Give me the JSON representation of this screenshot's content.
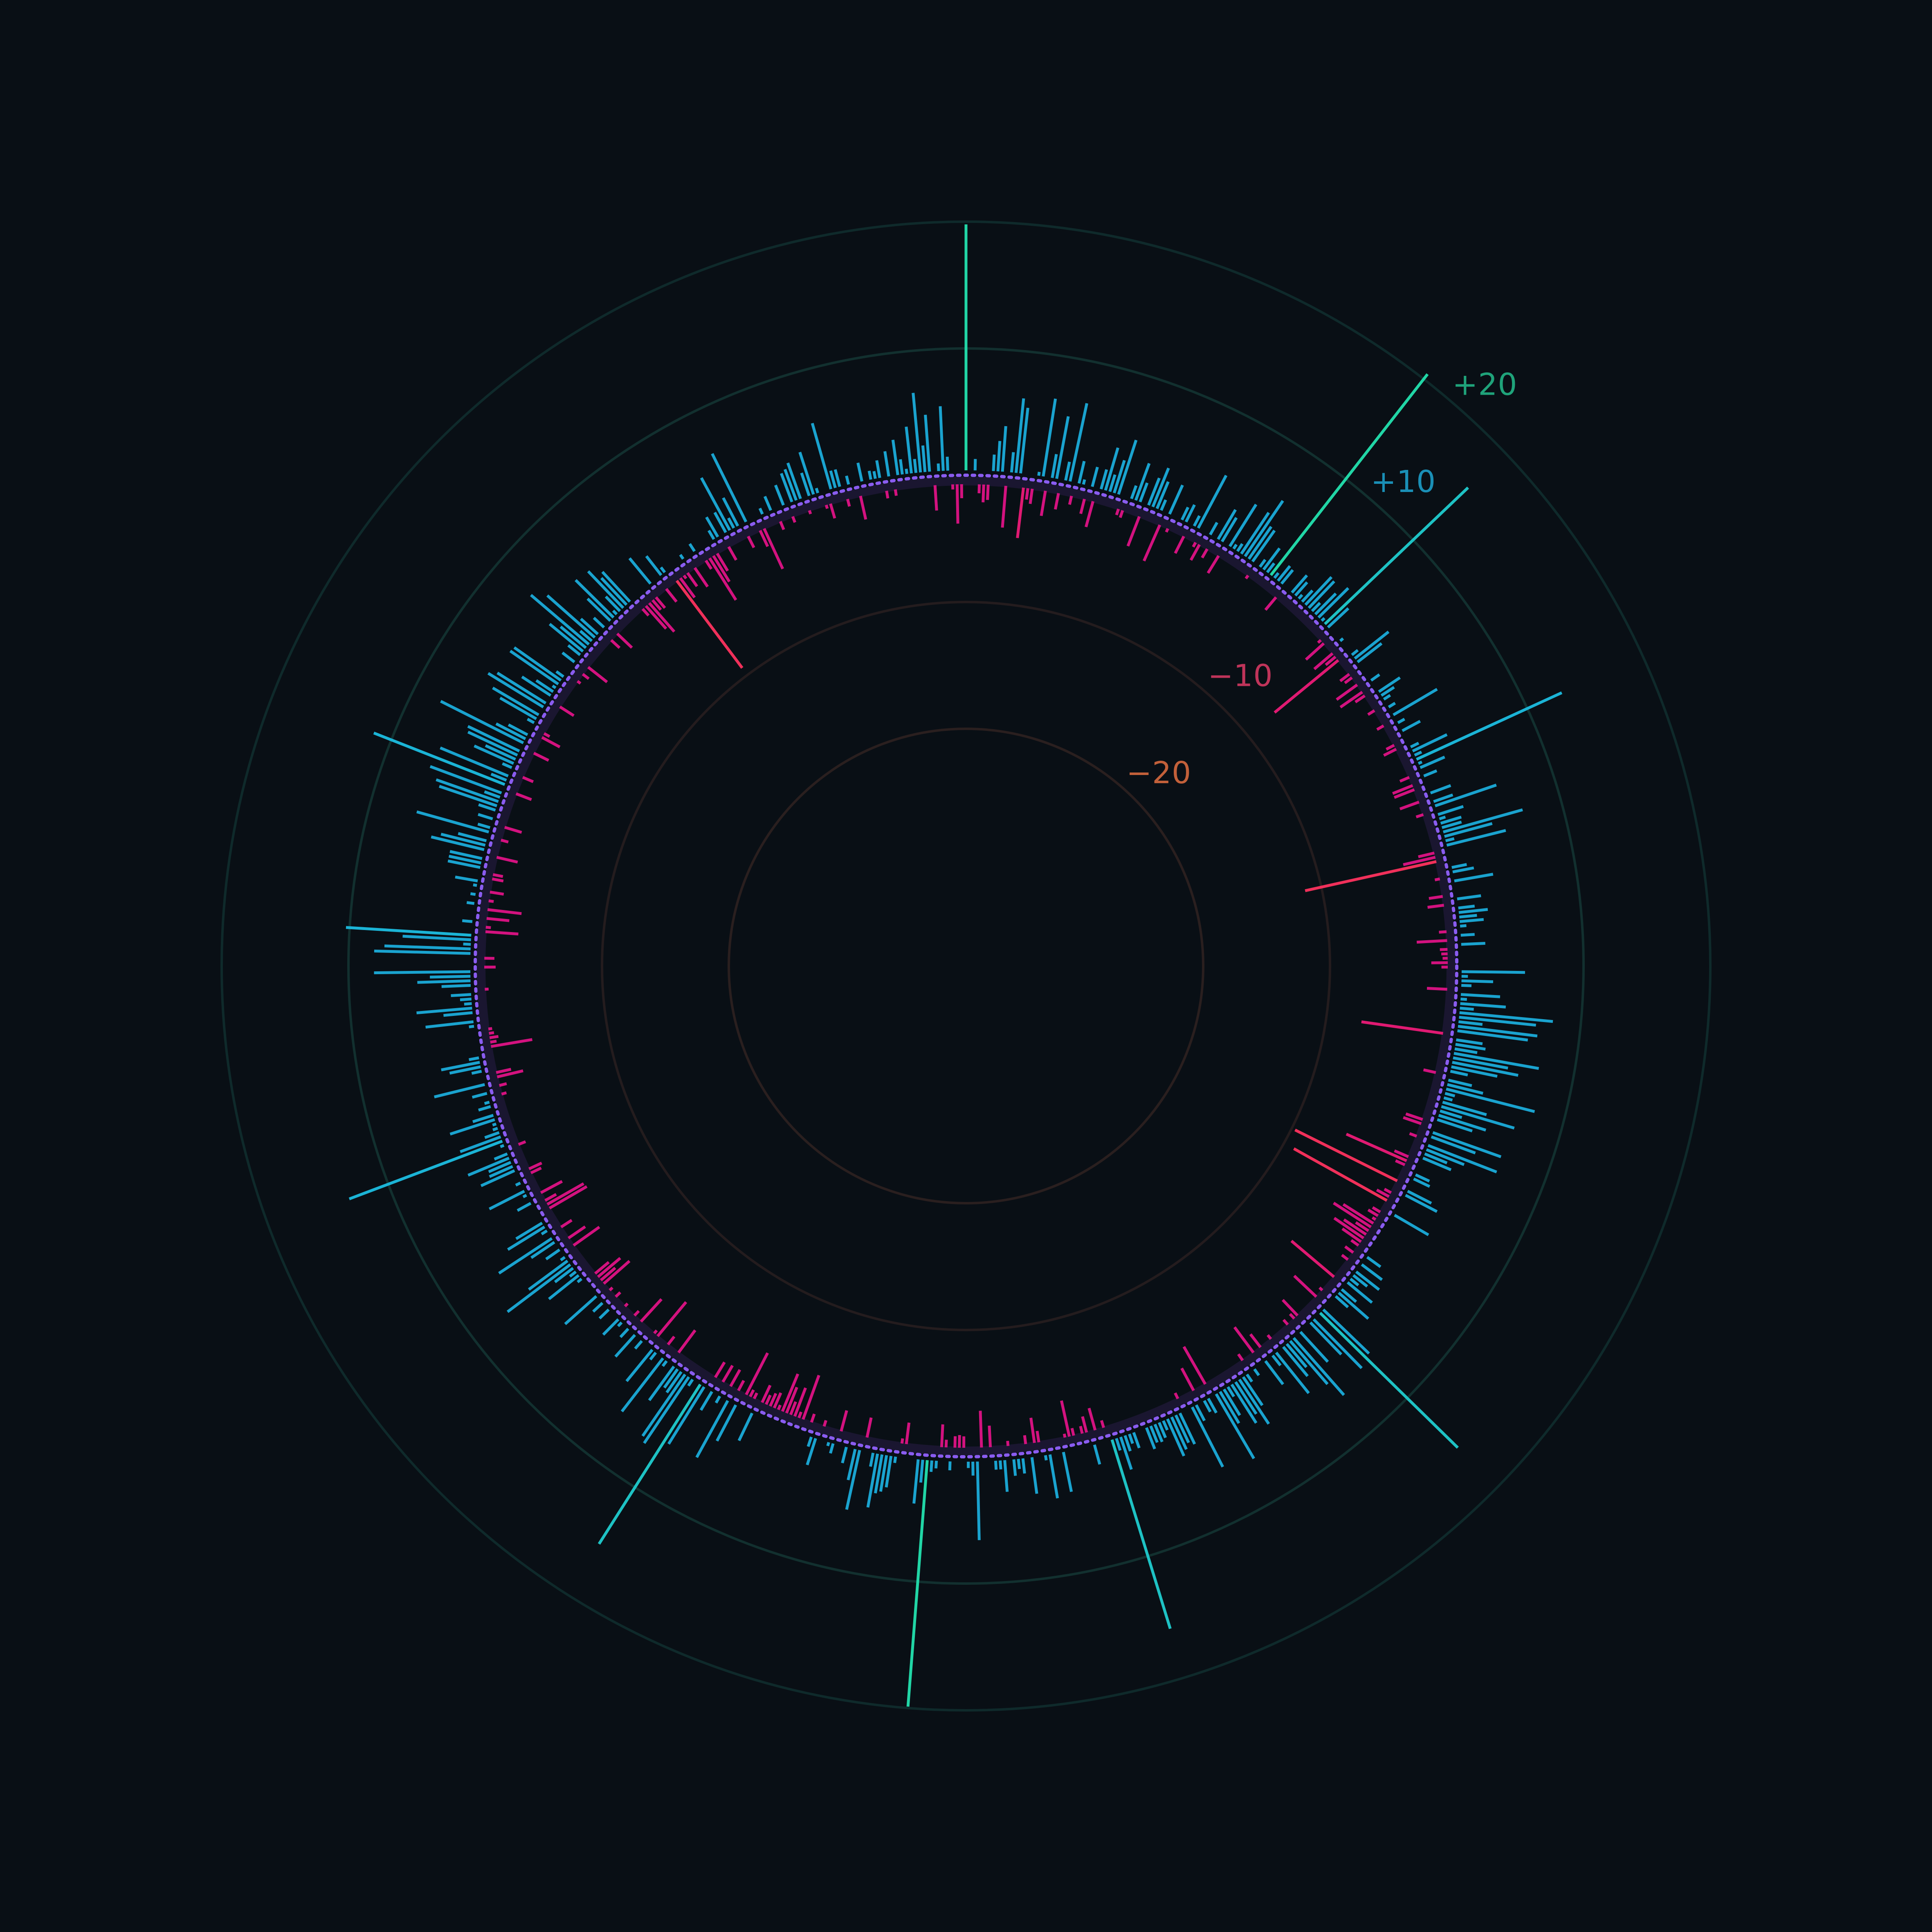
{
  "chart_data": {
    "type": "radial-bar",
    "title": "",
    "baseline": 0,
    "rings": [
      {
        "value": -20,
        "label": "−20",
        "color": "#c2603a"
      },
      {
        "value": -10,
        "label": "−10",
        "color": "#c0345a"
      },
      {
        "value": 10,
        "label": "+10",
        "color": "#1a8fb6"
      },
      {
        "value": 20,
        "label": "+20",
        "color": "#1fa37a"
      }
    ],
    "rlim": [
      -27.5,
      22.5
    ],
    "angle_start_deg": 0,
    "direction": "clockwise",
    "notable_values": [
      {
        "angle_deg": 0,
        "value": 19.4
      },
      {
        "angle_deg": 36,
        "value": 20.1
      },
      {
        "angle_deg": 45,
        "value": 15.6
      },
      {
        "angle_deg": 63,
        "value": 12.6
      },
      {
        "angle_deg": 84,
        "value": -10.6
      },
      {
        "angle_deg": 123,
        "value": -9.0
      },
      {
        "angle_deg": 142,
        "value": 15.2
      },
      {
        "angle_deg": 171,
        "value": 15.6
      },
      {
        "angle_deg": 186,
        "value": 19.5
      },
      {
        "angle_deg": 210,
        "value": 14.9
      },
      {
        "angle_deg": 266,
        "value": 12.9
      },
      {
        "angle_deg": 293,
        "value": 9.9
      },
      {
        "angle_deg": 306,
        "value": 11.1
      },
      {
        "angle_deg": 338,
        "value": -8.6
      }
    ],
    "series": [
      {
        "name": "values",
        "positive_color": "#1aa3cf",
        "negative_color": "#d3127f",
        "values": [
          19.4,
          -0.2,
          0.9,
          -0.7,
          -1.4,
          -1.2,
          1.3,
          2.4,
          3.6,
          -3.3,
          1.6,
          5.9,
          5.2,
          -4.0,
          -0.9,
          -1.2,
          0.3,
          6.2,
          -2.0,
          1.9,
          5.0,
          -1.3,
          1.5,
          6.3,
          -0.7,
          1.8,
          0.4,
          -1.2,
          1.6,
          -2.1,
          1.6,
          3.5,
          1.4,
          2.7,
          4.5,
          -0.5,
          -0.6,
          1.1,
          3.1,
          1.6,
          -2.5,
          2.3,
          3.3,
          2.3,
          0.9,
          -3.1,
          2.5,
          -0.3,
          -0.2,
          1.1,
          1.5,
          -1.5,
          0.9,
          4.7,
          -0.4,
          -1.4,
          1.1,
          -0.8,
          2.7,
          2.2,
          -1.6,
          3.9,
          0.4,
          0.7,
          3.9,
          5.3,
          3.1,
          3.0,
          -0.3,
          0.7,
          2.1,
          0.9,
          20.1,
          0.5,
          1.5,
          1.4,
          -1.3,
          -0.1,
          1.8,
          1.4,
          0.4,
          1.2,
          3.0,
          2.9,
          0.9,
          2.3,
          3.3,
          0.3,
          15.6,
          2.2,
          -0.3,
          -1.9,
          -0.1,
          0.3,
          -1.9,
          -1.0,
          -6.5,
          0.6,
          3.4,
          2.4,
          -0.9,
          -0.7,
          0.0,
          -2.0,
          0.8,
          -2.1,
          -0.9,
          2.0,
          1.2,
          0.6,
          -0.6,
          0.6,
          -0.1,
          4.0,
          -0.6,
          0.6,
          -0.1,
          1.6,
          0.2,
          -0.7,
          -1.1,
          0.7,
          3.0,
          0.6,
          12.6,
          0.3,
          2.1,
          -0.8,
          1.1,
          -1.7,
          -1.7,
          -0.2,
          1.7,
          -1.6,
          1.6,
          5.1,
          -0.6,
          2.1,
          0.5,
          1.7,
          1.6,
          6.5,
          3.9,
          0.7,
          4.8,
          -1.3,
          -2.6,
          -10.6,
          0.2,
          1.2,
          1.7,
          -0.4,
          3.1,
          0.1,
          -0.2,
          -1.1,
          1.9,
          -1.3,
          1.3,
          2.3,
          1.4,
          1.9,
          0.5,
          -0.6,
          1.1,
          -2.4,
          1.9,
          -0.6,
          -0.5,
          -0.4,
          -1.3,
          -0.5,
          5.0,
          0.5,
          2.5,
          0.8,
          -1.6,
          3.1,
          0.5,
          3.6,
          1.1,
          7.4,
          6.1,
          1.9,
          6.3,
          5.6,
          -6.5,
          2.1,
          2.4,
          1.8,
          6.8,
          4.4,
          5.3,
          3.7,
          1.4,
          -1.0,
          1.9,
          2.9,
          7.2,
          0.8,
          0.7,
          3.6,
          6.0,
          1.8,
          3.9,
          2.9,
          -1.4,
          -1.5,
          5.7,
          3.7,
          -0.6,
          5.8,
          3.2,
          1.9,
          2.4,
          -1.2,
          -5.2,
          -0.8,
          1.2,
          1.4,
          -0.1,
          -9.0,
          2.1,
          2.8,
          -0.6,
          -1.1,
          -8.4,
          0.2,
          3.1,
          -0.7,
          -0.9,
          -0.3,
          -2.8,
          -3.5,
          -1.2,
          -2.1,
          -2.8,
          -1.8,
          -0.7,
          1.3,
          -0.8,
          2.0,
          -0.6,
          2.3,
          1.4,
          0.8,
          2.5,
          -4.4,
          1.5,
          3.1,
          1.3,
          -0.3,
          0.2,
          -2.4,
          5.0,
          15.2,
          -0.1,
          5.4,
          3.5,
          -1.7,
          -0.5,
          3.2,
          -0.5,
          6.0,
          4.5,
          2.4,
          3.0,
          -0.4,
          4.1,
          1.0,
          -1.3,
          2.3,
          -2.5,
          0.1,
          0.6,
          -0.6,
          0.7,
          2.7,
          4.2,
          3.0,
          3.6,
          0.9,
          2.4,
          2.9,
          5.9,
          -3.4,
          1.3,
          1.0,
          -2.0,
          1.4,
          5.3,
          0.0,
          -0.5,
          2.7,
          2.4,
          2.8,
          3.2,
          0.8,
          1.3,
          1.5,
          1.4,
          1.8,
          0.2,
          -0.2,
          1.3,
          0.8,
          1.3,
          2.7,
          1.0,
          15.6,
          -0.6,
          0.2,
          -1.8,
          1.6,
          -1.3,
          -0.6,
          -0.1,
          -0.6,
          -2.9,
          -0.3,
          3.2,
          0.0,
          0.1,
          3.5,
          0.4,
          -0.9,
          -2.0,
          2.9,
          -0.7,
          1.2,
          0.8,
          1.3,
          -0.4,
          2.5,
          0.7,
          0.7,
          -1.7,
          -0.2,
          -2.9,
          6.2,
          1.1,
          0.5,
          -0.9,
          -1.0,
          -0.9,
          0.7,
          -0.6,
          -1.8,
          0.6,
          0.9,
          19.5,
          1.8,
          3.5,
          -0.2,
          0.0,
          -1.7,
          -0.4,
          0.5,
          2.5,
          2.9,
          3.1,
          4.3,
          1.1,
          0.2,
          -1.6,
          4.8,
          2.5,
          -0.1,
          1.3,
          -0.2,
          -1.7,
          0.8,
          0.3,
          -0.2,
          -0.5,
          2.2,
          0.8,
          -0.7,
          0.0,
          -3.7,
          -0.5,
          -2.4,
          -1.1,
          -2.2,
          -3.2,
          -0.4,
          -1.3,
          -1.1,
          -0.8,
          -1.5,
          2.4,
          -0.5,
          -0.6,
          -3.7,
          3.2,
          -0.9,
          5.1,
          -1.5,
          0.6,
          -1.5,
          1.7,
          -1.4,
          5.3,
          14.9,
          0.1,
          0.6,
          6.3,
          5.9,
          2.0,
          1.8,
          3.3,
          -2.2,
          0.5,
          5.3,
          -0.8,
          0.7,
          3.2,
          -3.5,
          -0.3,
          0.8,
          -0.2,
          2.3,
          -2.4,
          0.9,
          -0.5,
          0.4,
          1.7,
          -0.3,
          -0.1,
          1.0,
          -0.5,
          1.0,
          -0.3,
          3.3,
          -2.7,
          -1.5,
          -2.3,
          -1.4,
          0.4,
          3.0,
          0.6,
          1.8,
          6.2,
          3.8,
          0.4,
          -2.5,
          1.3,
          -1.6,
          2.2,
          5.0,
          -1.0,
          0.5,
          3.4,
          2.4,
          0.0,
          -3.4,
          -3.3,
          -1.0,
          1.2,
          -1.9,
          0.3,
          3.1,
          -0.2,
          0.4,
          -0.9,
          -1.1,
          2.9,
          2.0,
          1.9,
          3.5,
          1.1,
          -0.6,
          0.3,
          12.9,
          3.4,
          1.2,
          0.4,
          0.3,
          3.7,
          1.7,
          -0.2,
          1.0,
          0.4,
          -0.4,
          1.2,
          -0.6,
          4.1,
          -2.1,
          -1.2,
          0.8,
          2.5,
          3.1,
          0.8,
          -0.2,
          -3.3,
          -0.5,
          -0.7,
          -0.4,
          -0.3,
          0.4,
          3.8,
          -0.2,
          2.3,
          4.4,
          0.6,
          0.9,
          1.6,
          -0.3,
          2.3,
          4.2,
          3.2,
          7.6,
          -0.9,
          0.0,
          -0.8,
          7.6,
          6.8,
          0.6,
          5.4,
          9.9,
          -2.6,
          -0.4,
          0.8,
          -1.8,
          0.2,
          -2.7,
          0.6,
          -0.4,
          0.4,
          -1.1,
          0.3,
          1.8,
          -0.9,
          -0.8,
          2.6,
          2.6,
          2.6,
          -1.7,
          4.3,
          3.6,
          2.3,
          -0.6,
          5.9,
          1.0,
          -1.4,
          1.2,
          -0.2,
          1.4,
          4.8,
          5.2,
          1.3,
          6.0,
          -1.3,
          11.1,
          1.3,
          5.8,
          -0.9,
          0.8,
          3.4,
          2.6,
          4.3,
          4.5,
          -1.3,
          7.3,
          2.6,
          1.7,
          -1.6,
          -0.5,
          0.6,
          3.3,
          4.2,
          -0.2,
          5.1,
          4.5,
          -1.3,
          2.7,
          1.6,
          0.3,
          4.6,
          4.5,
          0.7,
          -0.3,
          -0.2,
          -0.6,
          1.2,
          -1.9,
          1.2,
          3.4,
          2.6,
          6.0,
          1.2,
          5.0,
          1.8,
          -0.9,
          1.1,
          -1.6,
          2.5,
          4.2,
          0.4,
          1.6,
          4.0,
          2.9,
          3.2,
          -0.7,
          -2.4,
          -3.0,
          -1.0,
          -1.1,
          2.6,
          -0.2,
          -1.3,
          1.9,
          0.5,
          -8.6,
          -1.9,
          -0.3,
          -1.3,
          0.4,
          -1.8,
          -0.1,
          0.7,
          -0.8,
          -3.9,
          -2.4,
          -1.6,
          0.8,
          1.8,
          -1.2,
          1.8,
          4.7,
          0.9,
          2.5,
          -1.0,
          6.0,
          0.0,
          -1.4,
          -3.5,
          0.5,
          0.0,
          1.2,
          -0.7,
          -0.1,
          1.7,
          -0.5,
          2.4,
          2.6,
          3.0,
          -0.3,
          1.9,
          3.5,
          0.4,
          -0.3,
          -1.2,
          5.4,
          1.4,
          1.4,
          -0.6,
          0.7,
          -0.2,
          -1.9,
          1.5,
          0.0,
          0.7,
          0.6,
          1.4,
          -0.6,
          2.0,
          -0.5,
          2.8,
          1.2,
          0.4,
          3.7,
          1.1,
          6.3,
          2.1,
          4.5,
          -2.0,
          0.6,
          5.1,
          1.1,
          -0.4,
          -3.1,
          -1.1
        ]
      }
    ]
  }
}
